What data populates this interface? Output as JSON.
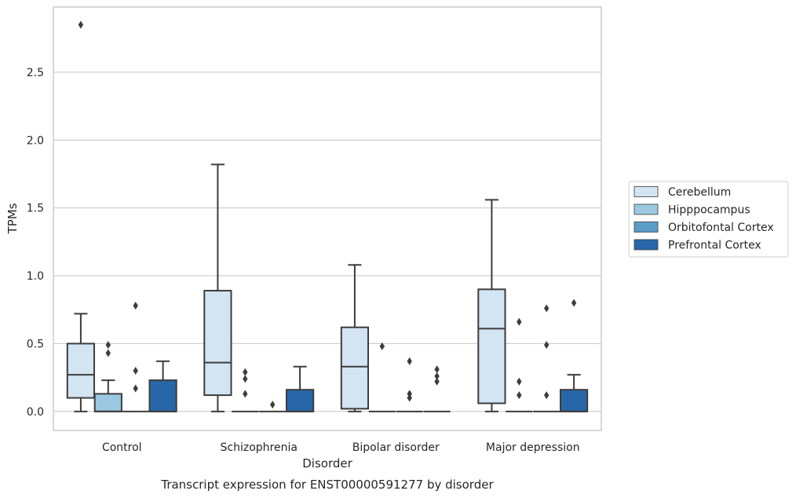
{
  "chart_data": {
    "type": "box",
    "caption": "Transcript expression for ENST00000591277 by disorder",
    "xlabel": "Disorder",
    "ylabel": "TPMs",
    "ylim": [
      -0.14,
      2.98
    ],
    "yticks": [
      0.0,
      0.5,
      1.0,
      1.5,
      2.0,
      2.5
    ],
    "ytick_labels": [
      "0.0",
      "0.5",
      "1.0",
      "1.5",
      "2.0",
      "2.5"
    ],
    "grid": "horizontal",
    "legend_position": "right",
    "categories": [
      "Control",
      "Schizophrenia",
      "Bipolar disorder",
      "Major depression"
    ],
    "series": [
      {
        "name": "Cerebellum",
        "color": "#d3e4f3",
        "boxes": [
          {
            "whislo": 0.0,
            "q1": 0.1,
            "med": 0.27,
            "q3": 0.5,
            "whishi": 0.72,
            "fliers": [
              2.85
            ]
          },
          {
            "whislo": 0.0,
            "q1": 0.12,
            "med": 0.36,
            "q3": 0.89,
            "whishi": 1.82,
            "fliers": []
          },
          {
            "whislo": 0.0,
            "q1": 0.02,
            "med": 0.33,
            "q3": 0.62,
            "whishi": 1.08,
            "fliers": []
          },
          {
            "whislo": 0.0,
            "q1": 0.06,
            "med": 0.61,
            "q3": 0.9,
            "whishi": 1.56,
            "fliers": []
          }
        ]
      },
      {
        "name": "Hipppocampus",
        "color": "#9ac8e0",
        "boxes": [
          {
            "whislo": 0.0,
            "q1": 0.0,
            "med": 0.0,
            "q3": 0.13,
            "whishi": 0.23,
            "fliers": [
              0.49,
              0.43
            ]
          },
          {
            "whislo": 0.0,
            "q1": 0.0,
            "med": 0.0,
            "q3": 0.0,
            "whishi": 0.0,
            "fliers": [
              0.29,
              0.24,
              0.13
            ]
          },
          {
            "whislo": 0.0,
            "q1": 0.0,
            "med": 0.0,
            "q3": 0.0,
            "whishi": 0.0,
            "fliers": [
              0.48
            ]
          },
          {
            "whislo": 0.0,
            "q1": 0.0,
            "med": 0.0,
            "q3": 0.0,
            "whishi": 0.0,
            "fliers": [
              0.66,
              0.22,
              0.12
            ]
          }
        ]
      },
      {
        "name": "Orbitofontal Cortex",
        "color": "#5a9cc8",
        "boxes": [
          {
            "whislo": 0.0,
            "q1": 0.0,
            "med": 0.0,
            "q3": 0.0,
            "whishi": 0.0,
            "fliers": [
              0.78,
              0.3,
              0.17
            ]
          },
          {
            "whislo": 0.0,
            "q1": 0.0,
            "med": 0.0,
            "q3": 0.0,
            "whishi": 0.0,
            "fliers": [
              0.05
            ]
          },
          {
            "whislo": 0.0,
            "q1": 0.0,
            "med": 0.0,
            "q3": 0.0,
            "whishi": 0.0,
            "fliers": [
              0.37,
              0.13,
              0.1
            ]
          },
          {
            "whislo": 0.0,
            "q1": 0.0,
            "med": 0.0,
            "q3": 0.0,
            "whishi": 0.0,
            "fliers": [
              0.76,
              0.49,
              0.12
            ]
          }
        ]
      },
      {
        "name": "Prefrontal Cortex",
        "color": "#2767a9",
        "boxes": [
          {
            "whislo": 0.0,
            "q1": 0.0,
            "med": 0.0,
            "q3": 0.23,
            "whishi": 0.37,
            "fliers": []
          },
          {
            "whislo": 0.0,
            "q1": 0.0,
            "med": 0.0,
            "q3": 0.16,
            "whishi": 0.33,
            "fliers": []
          },
          {
            "whislo": 0.0,
            "q1": 0.0,
            "med": 0.0,
            "q3": 0.0,
            "whishi": 0.0,
            "fliers": [
              0.31,
              0.26,
              0.22
            ]
          },
          {
            "whislo": 0.0,
            "q1": 0.0,
            "med": 0.0,
            "q3": 0.16,
            "whishi": 0.27,
            "fliers": [
              0.8
            ]
          }
        ]
      }
    ]
  }
}
